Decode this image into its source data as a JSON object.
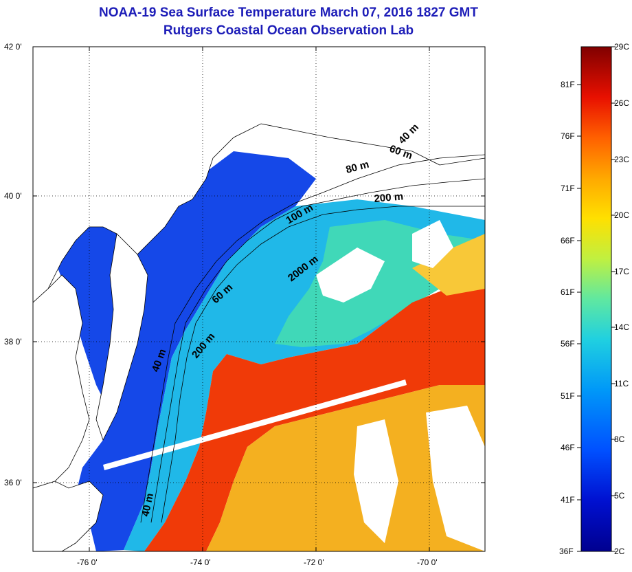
{
  "title": {
    "line1": "NOAA-19 Sea Surface Temperature March 07, 2016 1827 GMT",
    "line2": "Rutgers Coastal Ocean Observation Lab"
  },
  "axes": {
    "lat_labels": [
      "42 0'",
      "40 0'",
      "38 0'",
      "36 0'"
    ],
    "lon_labels": [
      "-76 0'",
      "-74 0'",
      "-72 0'",
      "-70 0'"
    ]
  },
  "contours": [
    "40 m",
    "60 m",
    "80 m",
    "200 m",
    "100 m",
    "2000 m",
    "60 m",
    "200 m",
    "40 m",
    "40 m"
  ],
  "colorbar": {
    "celsius": [
      "29C",
      "26C",
      "23C",
      "20C",
      "17C",
      "14C",
      "11C",
      "8C",
      "5C",
      "2C"
    ],
    "fahrenheit": [
      "81F",
      "76F",
      "71F",
      "66F",
      "61F",
      "56F",
      "51F",
      "46F",
      "41F",
      "36F"
    ],
    "colors": [
      "#7f0000",
      "#c00000",
      "#ff2000",
      "#ff8000",
      "#ffd000",
      "#e0f020",
      "#40e0b0",
      "#00b0f0",
      "#0050ff",
      "#00009a"
    ]
  }
}
